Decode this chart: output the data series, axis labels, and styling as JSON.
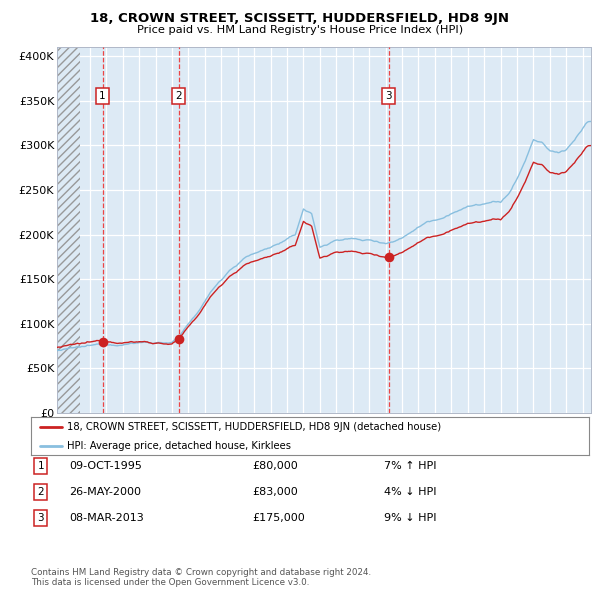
{
  "title": "18, CROWN STREET, SCISSETT, HUDDERSFIELD, HD8 9JN",
  "subtitle": "Price paid vs. HM Land Registry's House Price Index (HPI)",
  "legend_line1": "18, CROWN STREET, SCISSETT, HUDDERSFIELD, HD8 9JN (detached house)",
  "legend_line2": "HPI: Average price, detached house, Kirklees",
  "transactions": [
    {
      "num": 1,
      "date": "09-OCT-1995",
      "price": 80000,
      "pct": "7%",
      "dir": "↑"
    },
    {
      "num": 2,
      "date": "26-MAY-2000",
      "price": 83000,
      "pct": "4%",
      "dir": "↓"
    },
    {
      "num": 3,
      "date": "08-MAR-2013",
      "price": 175000,
      "pct": "9%",
      "dir": "↓"
    }
  ],
  "transaction_dates_decimal": [
    1995.771,
    2000.397,
    2013.181
  ],
  "transaction_prices": [
    80000,
    83000,
    175000
  ],
  "ylim": [
    0,
    410000
  ],
  "yticks": [
    0,
    50000,
    100000,
    150000,
    200000,
    250000,
    300000,
    350000,
    400000
  ],
  "ytick_labels": [
    "£0",
    "£50K",
    "£100K",
    "£150K",
    "£200K",
    "£250K",
    "£300K",
    "£350K",
    "£400K"
  ],
  "xlim_start": 1993.0,
  "xlim_end": 2025.5,
  "hpi_line_color": "#89bfdf",
  "price_line_color": "#cc2222",
  "dot_color": "#cc2222",
  "vline_color": "#ee3333",
  "plot_bg_color": "#ddeaf5",
  "hatch_region_end": 1994.42,
  "copyright_text": "Contains HM Land Registry data © Crown copyright and database right 2024.\nThis data is licensed under the Open Government Licence v3.0.",
  "hpi_anchors_t": [
    1993.0,
    1994.0,
    1995.0,
    1996.0,
    1997.0,
    1998.0,
    1999.0,
    2000.0,
    2000.5,
    2001.5,
    2002.5,
    2003.5,
    2004.5,
    2005.5,
    2006.5,
    2007.5,
    2008.0,
    2008.5,
    2009.0,
    2009.5,
    2010.0,
    2010.5,
    2011.0,
    2011.5,
    2012.0,
    2012.5,
    2013.0,
    2013.5,
    2014.0,
    2014.5,
    2015.0,
    2015.5,
    2016.0,
    2016.5,
    2017.0,
    2017.5,
    2018.0,
    2018.5,
    2019.0,
    2019.5,
    2020.0,
    2020.5,
    2021.0,
    2021.5,
    2022.0,
    2022.5,
    2023.0,
    2023.5,
    2024.0,
    2024.5,
    2025.3
  ],
  "hpi_anchors_v": [
    70000,
    71500,
    73000,
    75000,
    77000,
    79000,
    79500,
    80000,
    87000,
    110000,
    138000,
    160000,
    175000,
    182000,
    190000,
    198000,
    228000,
    222000,
    185000,
    188000,
    193000,
    195000,
    195000,
    193000,
    193000,
    192000,
    191000,
    193000,
    197000,
    204000,
    210000,
    216000,
    219000,
    222000,
    228000,
    232000,
    235000,
    237000,
    238000,
    240000,
    238000,
    248000,
    265000,
    285000,
    308000,
    305000,
    295000,
    293000,
    297000,
    308000,
    328000
  ]
}
